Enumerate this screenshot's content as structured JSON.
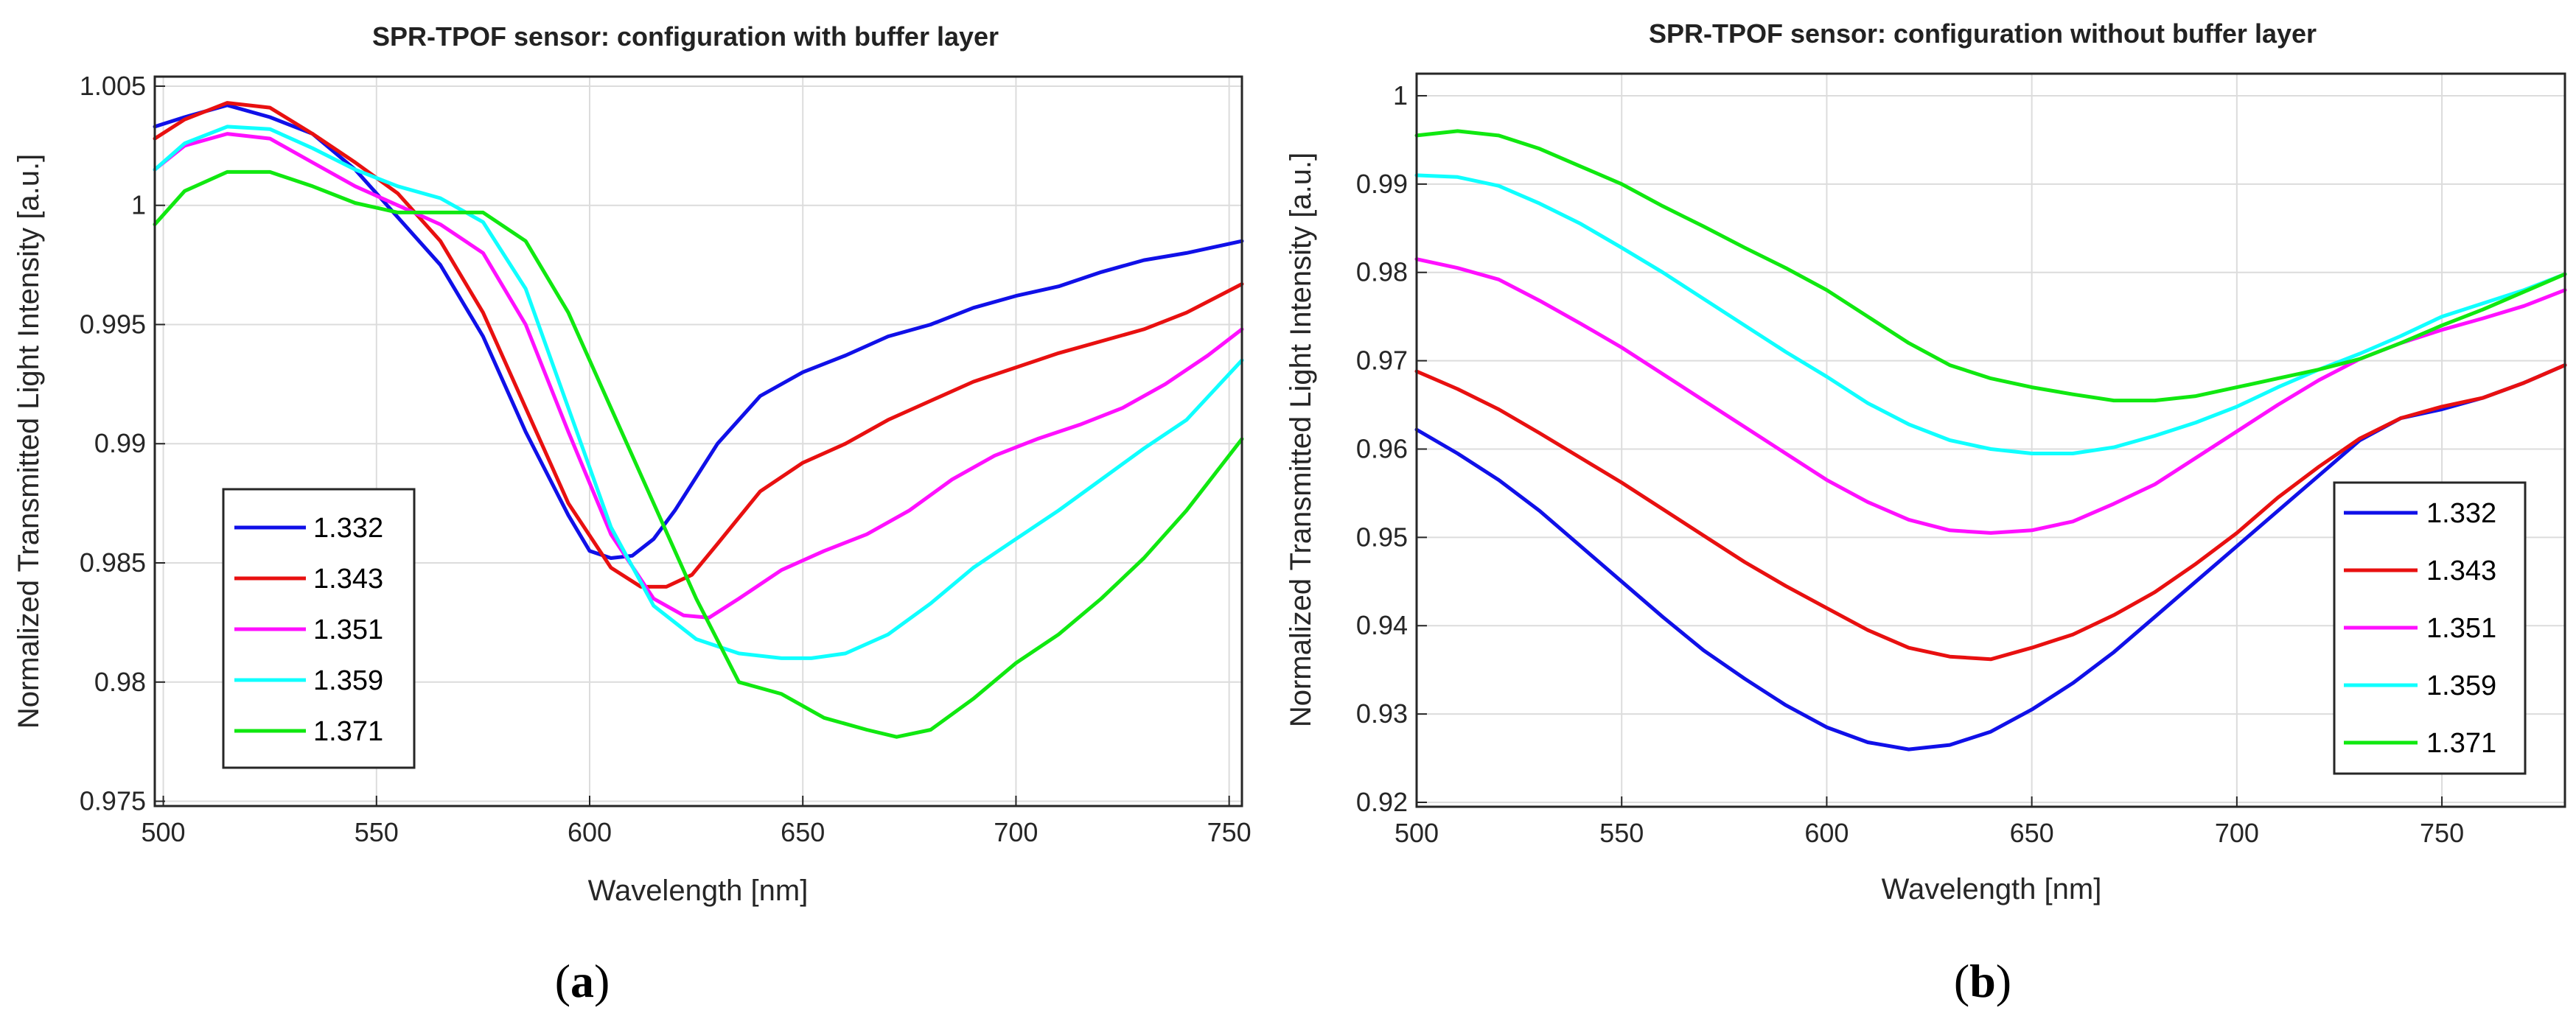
{
  "chart_data": [
    {
      "type": "line",
      "title": "SPR-TPOF sensor: configuration with buffer layer",
      "xlabel": "Wavelength [nm]",
      "ylabel": "Normalized Transmitted Light Intensity [a.u.]",
      "xlim": [
        498,
        753
      ],
      "ylim": [
        0.9748,
        1.0054
      ],
      "xticks": [
        500,
        550,
        600,
        650,
        700,
        750
      ],
      "xtick_labels": [
        "500",
        "550",
        "600",
        "650",
        "700",
        "750"
      ],
      "yticks": [
        0.975,
        0.98,
        0.985,
        0.99,
        0.995,
        1,
        1.005
      ],
      "ytick_labels": [
        "0.975",
        "0.98",
        "0.985",
        "0.99",
        "0.995",
        "1",
        "1.005"
      ],
      "grid": true,
      "legend_position": "lower-left",
      "panel_label": {
        "open": "(",
        "letter": "a",
        "close": ")"
      },
      "series": [
        {
          "name": "1.332",
          "color": "#1010e8",
          "x": [
            498,
            505,
            515,
            525,
            535,
            545,
            555,
            565,
            575,
            585,
            595,
            600,
            605,
            610,
            615,
            620,
            630,
            640,
            650,
            660,
            670,
            680,
            690,
            700,
            710,
            720,
            730,
            740,
            753
          ],
          "y": [
            1.0033,
            1.0037,
            1.0042,
            1.0037,
            1.003,
            1.0015,
            0.9995,
            0.9975,
            0.9945,
            0.9905,
            0.987,
            0.9855,
            0.9852,
            0.9853,
            0.986,
            0.9872,
            0.99,
            0.992,
            0.993,
            0.9937,
            0.9945,
            0.995,
            0.9957,
            0.9962,
            0.9966,
            0.9972,
            0.9977,
            0.998,
            0.9985
          ]
        },
        {
          "name": "1.343",
          "color": "#e81010",
          "x": [
            498,
            505,
            515,
            525,
            535,
            545,
            555,
            565,
            575,
            585,
            595,
            605,
            612,
            618,
            624,
            630,
            640,
            650,
            660,
            670,
            680,
            690,
            700,
            710,
            720,
            730,
            740,
            753
          ],
          "y": [
            1.0028,
            1.0036,
            1.0043,
            1.0041,
            1.003,
            1.0018,
            1.0005,
            0.9985,
            0.9955,
            0.9915,
            0.9875,
            0.9848,
            0.984,
            0.984,
            0.9845,
            0.9858,
            0.988,
            0.9892,
            0.99,
            0.991,
            0.9918,
            0.9926,
            0.9932,
            0.9938,
            0.9943,
            0.9948,
            0.9955,
            0.9967
          ]
        },
        {
          "name": "1.351",
          "color": "#ff10ff",
          "x": [
            498,
            505,
            515,
            525,
            535,
            545,
            555,
            565,
            575,
            585,
            595,
            605,
            615,
            622,
            628,
            635,
            645,
            655,
            665,
            675,
            685,
            695,
            705,
            715,
            725,
            735,
            745,
            753
          ],
          "y": [
            1.0015,
            1.0025,
            1.003,
            1.0028,
            1.0018,
            1.0008,
            1.0,
            0.9992,
            0.998,
            0.995,
            0.9905,
            0.9862,
            0.9835,
            0.9828,
            0.9827,
            0.9835,
            0.9847,
            0.9855,
            0.9862,
            0.9872,
            0.9885,
            0.9895,
            0.9902,
            0.9908,
            0.9915,
            0.9925,
            0.9937,
            0.9948
          ]
        },
        {
          "name": "1.359",
          "color": "#10ffff",
          "x": [
            498,
            505,
            515,
            525,
            535,
            545,
            555,
            565,
            575,
            585,
            595,
            605,
            615,
            625,
            635,
            645,
            652,
            660,
            670,
            680,
            690,
            700,
            710,
            720,
            730,
            740,
            753
          ],
          "y": [
            1.0015,
            1.0026,
            1.0033,
            1.0032,
            1.0024,
            1.0015,
            1.0008,
            1.0003,
            0.9993,
            0.9965,
            0.9915,
            0.9865,
            0.9832,
            0.9818,
            0.9812,
            0.981,
            0.981,
            0.9812,
            0.982,
            0.9833,
            0.9848,
            0.986,
            0.9872,
            0.9885,
            0.9898,
            0.991,
            0.9935
          ]
        },
        {
          "name": "1.371",
          "color": "#10e810",
          "x": [
            498,
            505,
            515,
            525,
            535,
            545,
            555,
            565,
            575,
            585,
            595,
            605,
            615,
            625,
            635,
            645,
            655,
            665,
            672,
            680,
            690,
            700,
            710,
            720,
            730,
            740,
            753
          ],
          "y": [
            0.9992,
            1.0006,
            1.0014,
            1.0014,
            1.0008,
            1.0001,
            0.9997,
            0.9997,
            0.9997,
            0.9985,
            0.9955,
            0.9915,
            0.9875,
            0.9835,
            0.98,
            0.9795,
            0.9785,
            0.978,
            0.9777,
            0.978,
            0.9793,
            0.9808,
            0.982,
            0.9835,
            0.9852,
            0.9872,
            0.9902
          ]
        }
      ]
    },
    {
      "type": "line",
      "title": "SPR-TPOF sensor: configuration without buffer layer",
      "xlabel": "Wavelength [nm]",
      "ylabel": "Normalized Transmitted Light Intensity [a.u.]",
      "xlim": [
        500,
        780
      ],
      "ylim": [
        0.9195,
        1.0025
      ],
      "xticks": [
        500,
        550,
        600,
        650,
        700,
        750
      ],
      "xtick_labels": [
        "500",
        "550",
        "600",
        "650",
        "700",
        "750"
      ],
      "yticks": [
        0.92,
        0.93,
        0.94,
        0.95,
        0.96,
        0.97,
        0.98,
        0.99,
        1
      ],
      "ytick_labels": [
        "0.92",
        "0.93",
        "0.94",
        "0.95",
        "0.96",
        "0.97",
        "0.98",
        "0.99",
        "1"
      ],
      "grid": true,
      "legend_position": "lower-right",
      "panel_label": {
        "open": "(",
        "letter": "b",
        "close": ")"
      },
      "series": [
        {
          "name": "1.332",
          "color": "#1010e8",
          "x": [
            500,
            510,
            520,
            530,
            540,
            550,
            560,
            570,
            580,
            590,
            600,
            610,
            620,
            630,
            640,
            650,
            660,
            670,
            680,
            690,
            700,
            710,
            720,
            730,
            740,
            750,
            760,
            770,
            780
          ],
          "y": [
            0.9622,
            0.9595,
            0.9565,
            0.953,
            0.949,
            0.945,
            0.941,
            0.9372,
            0.934,
            0.931,
            0.9285,
            0.9268,
            0.926,
            0.9265,
            0.928,
            0.9305,
            0.9335,
            0.937,
            0.941,
            0.945,
            0.949,
            0.953,
            0.957,
            0.961,
            0.9635,
            0.9645,
            0.9658,
            0.9675,
            0.9695
          ]
        },
        {
          "name": "1.343",
          "color": "#e81010",
          "x": [
            500,
            510,
            520,
            530,
            540,
            550,
            560,
            570,
            580,
            590,
            600,
            610,
            620,
            630,
            640,
            650,
            660,
            670,
            680,
            690,
            700,
            710,
            720,
            730,
            740,
            750,
            760,
            770,
            780
          ],
          "y": [
            0.9688,
            0.9668,
            0.9645,
            0.9618,
            0.959,
            0.9562,
            0.9532,
            0.9502,
            0.9472,
            0.9445,
            0.942,
            0.9395,
            0.9375,
            0.9365,
            0.9362,
            0.9375,
            0.939,
            0.9412,
            0.9438,
            0.947,
            0.9505,
            0.9545,
            0.958,
            0.9612,
            0.9635,
            0.9648,
            0.9658,
            0.9675,
            0.9695
          ]
        },
        {
          "name": "1.351",
          "color": "#ff10ff",
          "x": [
            500,
            510,
            520,
            530,
            540,
            550,
            560,
            570,
            580,
            590,
            600,
            610,
            620,
            630,
            640,
            650,
            660,
            670,
            680,
            690,
            700,
            710,
            720,
            730,
            740,
            750,
            760,
            770,
            780
          ],
          "y": [
            0.9815,
            0.9805,
            0.9792,
            0.9768,
            0.9742,
            0.9715,
            0.9685,
            0.9655,
            0.9625,
            0.9595,
            0.9565,
            0.954,
            0.952,
            0.9508,
            0.9505,
            0.9508,
            0.9518,
            0.9538,
            0.956,
            0.959,
            0.962,
            0.965,
            0.9678,
            0.9702,
            0.972,
            0.9735,
            0.9748,
            0.9762,
            0.978
          ]
        },
        {
          "name": "1.359",
          "color": "#10ffff",
          "x": [
            500,
            510,
            520,
            530,
            540,
            550,
            560,
            570,
            580,
            590,
            600,
            610,
            620,
            630,
            640,
            650,
            660,
            670,
            680,
            690,
            700,
            710,
            720,
            730,
            740,
            750,
            760,
            770,
            780
          ],
          "y": [
            0.991,
            0.9908,
            0.9898,
            0.9878,
            0.9855,
            0.9828,
            0.98,
            0.977,
            0.974,
            0.971,
            0.9682,
            0.9652,
            0.9628,
            0.961,
            0.96,
            0.9595,
            0.9595,
            0.9602,
            0.9615,
            0.963,
            0.9648,
            0.967,
            0.969,
            0.9708,
            0.9728,
            0.975,
            0.9765,
            0.978,
            0.9798
          ]
        },
        {
          "name": "1.371",
          "color": "#10e810",
          "x": [
            500,
            510,
            520,
            530,
            540,
            550,
            560,
            570,
            580,
            590,
            600,
            610,
            620,
            630,
            640,
            650,
            660,
            670,
            680,
            690,
            700,
            710,
            720,
            730,
            740,
            750,
            760,
            770,
            780
          ],
          "y": [
            0.9955,
            0.996,
            0.9955,
            0.994,
            0.992,
            0.99,
            0.9875,
            0.9852,
            0.9828,
            0.9805,
            0.978,
            0.975,
            0.972,
            0.9695,
            0.968,
            0.967,
            0.9662,
            0.9655,
            0.9655,
            0.966,
            0.967,
            0.968,
            0.969,
            0.9702,
            0.972,
            0.974,
            0.9758,
            0.9778,
            0.9798
          ]
        }
      ]
    }
  ]
}
